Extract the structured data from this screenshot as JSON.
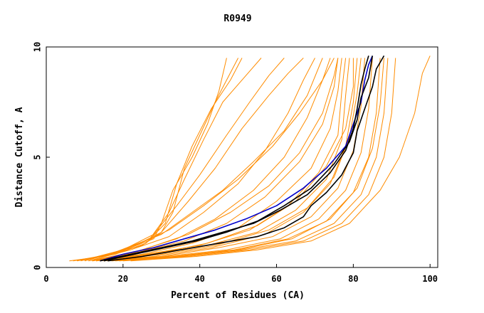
{
  "chart_data": {
    "type": "line",
    "title": "R0949",
    "xlabel": "Percent of Residues (CA)",
    "ylabel": "Distance Cutoff, A",
    "xlim": [
      0,
      102
    ],
    "ylim": [
      0,
      10
    ],
    "x_ticks": [
      0,
      20,
      40,
      60,
      80,
      100
    ],
    "y_ticks": [
      0,
      5,
      10
    ],
    "grid": false,
    "colors": {
      "orange": "#ff8c00",
      "blue": "#0000cc",
      "black": "#000000"
    },
    "series": [
      {
        "color": "#ff8c00",
        "points": [
          [
            6,
            0.3
          ],
          [
            15,
            0.5
          ],
          [
            22,
            0.9
          ],
          [
            28,
            1.3
          ],
          [
            30,
            2.0
          ],
          [
            33,
            3.5
          ],
          [
            38,
            5.0
          ],
          [
            42,
            6.5
          ],
          [
            45,
            8.0
          ],
          [
            47,
            9.5
          ]
        ]
      },
      {
        "color": "#ff8c00",
        "points": [
          [
            7,
            0.3
          ],
          [
            17,
            0.6
          ],
          [
            25,
            1.0
          ],
          [
            30,
            1.6
          ],
          [
            33,
            2.5
          ],
          [
            36,
            4.5
          ],
          [
            40,
            6.0
          ],
          [
            44,
            7.5
          ],
          [
            47,
            8.5
          ],
          [
            50,
            9.5
          ]
        ]
      },
      {
        "color": "#ff8c00",
        "points": [
          [
            8,
            0.3
          ],
          [
            18,
            0.6
          ],
          [
            26,
            1.1
          ],
          [
            31,
            2.0
          ],
          [
            34,
            3.8
          ],
          [
            38,
            5.5
          ],
          [
            43,
            7.2
          ],
          [
            48,
            8.5
          ],
          [
            51,
            9.5
          ]
        ]
      },
      {
        "color": "#ff8c00",
        "points": [
          [
            9,
            0.3
          ],
          [
            18,
            0.7
          ],
          [
            27,
            1.3
          ],
          [
            32,
            2.5
          ],
          [
            36,
            4.0
          ],
          [
            41,
            5.8
          ],
          [
            46,
            7.5
          ],
          [
            52,
            8.7
          ],
          [
            56,
            9.5
          ]
        ]
      },
      {
        "color": "#ff8c00",
        "points": [
          [
            10,
            0.3
          ],
          [
            20,
            0.8
          ],
          [
            28,
            1.5
          ],
          [
            34,
            2.8
          ],
          [
            40,
            4.2
          ],
          [
            47,
            6.0
          ],
          [
            53,
            7.5
          ],
          [
            58,
            8.7
          ],
          [
            62,
            9.5
          ]
        ]
      },
      {
        "color": "#ff8c00",
        "points": [
          [
            10,
            0.3
          ],
          [
            21,
            0.8
          ],
          [
            30,
            1.6
          ],
          [
            37,
            3.0
          ],
          [
            44,
            4.5
          ],
          [
            51,
            6.3
          ],
          [
            58,
            7.8
          ],
          [
            63,
            8.8
          ],
          [
            67,
            9.5
          ]
        ]
      },
      {
        "color": "#ff8c00",
        "points": [
          [
            11,
            0.3
          ],
          [
            22,
            0.8
          ],
          [
            32,
            1.4
          ],
          [
            41,
            2.5
          ],
          [
            50,
            3.8
          ],
          [
            57,
            5.3
          ],
          [
            63,
            7.0
          ],
          [
            67,
            8.5
          ],
          [
            70,
            9.5
          ]
        ]
      },
      {
        "color": "#ff8c00",
        "points": [
          [
            11,
            0.3
          ],
          [
            23,
            0.7
          ],
          [
            34,
            1.3
          ],
          [
            44,
            2.2
          ],
          [
            54,
            3.5
          ],
          [
            62,
            5.0
          ],
          [
            68,
            6.8
          ],
          [
            72,
            8.5
          ],
          [
            75,
            9.5
          ]
        ]
      },
      {
        "color": "#ff8c00",
        "points": [
          [
            12,
            0.3
          ],
          [
            24,
            0.7
          ],
          [
            36,
            1.2
          ],
          [
            47,
            2.0
          ],
          [
            57,
            3.2
          ],
          [
            66,
            4.8
          ],
          [
            72,
            6.5
          ],
          [
            75,
            8.2
          ],
          [
            76,
            9.5
          ]
        ]
      },
      {
        "color": "#ff8c00",
        "points": [
          [
            12,
            0.3
          ],
          [
            25,
            0.6
          ],
          [
            38,
            1.1
          ],
          [
            50,
            1.8
          ],
          [
            60,
            3.0
          ],
          [
            69,
            4.5
          ],
          [
            74,
            6.3
          ],
          [
            76,
            8.0
          ],
          [
            77,
            9.5
          ]
        ]
      },
      {
        "color": "#ff8c00",
        "points": [
          [
            13,
            0.3
          ],
          [
            26,
            0.6
          ],
          [
            40,
            1.0
          ],
          [
            53,
            1.7
          ],
          [
            63,
            2.8
          ],
          [
            71,
            4.3
          ],
          [
            76,
            6.0
          ],
          [
            77,
            8.0
          ],
          [
            78,
            9.5
          ]
        ]
      },
      {
        "color": "#ff8c00",
        "points": [
          [
            13,
            0.3
          ],
          [
            27,
            0.6
          ],
          [
            42,
            1.0
          ],
          [
            55,
            1.6
          ],
          [
            65,
            2.6
          ],
          [
            73,
            4.0
          ],
          [
            77,
            5.8
          ],
          [
            78,
            7.8
          ],
          [
            79,
            9.5
          ]
        ]
      },
      {
        "color": "#ff8c00",
        "points": [
          [
            14,
            0.3
          ],
          [
            28,
            0.5
          ],
          [
            43,
            0.9
          ],
          [
            57,
            1.5
          ],
          [
            67,
            2.5
          ],
          [
            74,
            3.8
          ],
          [
            78,
            5.5
          ],
          [
            80,
            7.5
          ],
          [
            81,
            9.5
          ]
        ]
      },
      {
        "color": "#ff8c00",
        "points": [
          [
            15,
            0.3
          ],
          [
            30,
            0.5
          ],
          [
            45,
            0.9
          ],
          [
            59,
            1.4
          ],
          [
            69,
            2.3
          ],
          [
            76,
            3.6
          ],
          [
            80,
            5.3
          ],
          [
            82,
            7.3
          ],
          [
            83,
            9.5
          ]
        ]
      },
      {
        "color": "#ff8c00",
        "points": [
          [
            16,
            0.3
          ],
          [
            31,
            0.5
          ],
          [
            47,
            0.8
          ],
          [
            61,
            1.3
          ],
          [
            71,
            2.2
          ],
          [
            78,
            3.5
          ],
          [
            82,
            5.2
          ],
          [
            84,
            7.2
          ],
          [
            85,
            9.5
          ]
        ]
      },
      {
        "color": "#ff8c00",
        "points": [
          [
            17,
            0.3
          ],
          [
            33,
            0.5
          ],
          [
            49,
            0.8
          ],
          [
            63,
            1.3
          ],
          [
            73,
            2.1
          ],
          [
            80,
            3.4
          ],
          [
            84,
            5.0
          ],
          [
            86,
            7.0
          ],
          [
            87,
            9.5
          ]
        ]
      },
      {
        "color": "#ff8c00",
        "points": [
          [
            18,
            0.3
          ],
          [
            35,
            0.5
          ],
          [
            51,
            0.8
          ],
          [
            65,
            1.2
          ],
          [
            75,
            2.0
          ],
          [
            82,
            3.3
          ],
          [
            86,
            5.0
          ],
          [
            88,
            7.0
          ],
          [
            89,
            9.5
          ]
        ]
      },
      {
        "color": "#ff8c00",
        "points": [
          [
            20,
            0.3
          ],
          [
            37,
            0.5
          ],
          [
            53,
            0.8
          ],
          [
            67,
            1.2
          ],
          [
            77,
            2.0
          ],
          [
            84,
            3.3
          ],
          [
            88,
            5.0
          ],
          [
            90,
            7.0
          ],
          [
            91,
            9.5
          ]
        ]
      },
      {
        "color": "#ff8c00",
        "points": [
          [
            22,
            0.3
          ],
          [
            39,
            0.5
          ],
          [
            55,
            0.8
          ],
          [
            69,
            1.2
          ],
          [
            79,
            2.0
          ],
          [
            87,
            3.5
          ],
          [
            92,
            5.0
          ],
          [
            96,
            7.0
          ],
          [
            98,
            8.8
          ],
          [
            100,
            9.6
          ]
        ]
      },
      {
        "color": "#ff8c00",
        "points": [
          [
            9,
            0.3
          ],
          [
            20,
            0.8
          ],
          [
            30,
            1.5
          ],
          [
            38,
            2.5
          ],
          [
            46,
            3.5
          ],
          [
            54,
            4.8
          ],
          [
            62,
            6.2
          ],
          [
            68,
            7.8
          ],
          [
            72,
            9.5
          ]
        ]
      },
      {
        "color": "#ff8c00",
        "points": [
          [
            10,
            0.3
          ],
          [
            22,
            0.9
          ],
          [
            32,
            1.7
          ],
          [
            41,
            2.8
          ],
          [
            50,
            4.0
          ],
          [
            59,
            5.5
          ],
          [
            66,
            7.0
          ],
          [
            72,
            8.5
          ],
          [
            74,
            9.5
          ]
        ]
      },
      {
        "color": "#ff8c00",
        "points": [
          [
            12,
            0.3
          ],
          [
            25,
            0.8
          ],
          [
            37,
            1.5
          ],
          [
            48,
            2.5
          ],
          [
            58,
            3.7
          ],
          [
            66,
            5.2
          ],
          [
            72,
            7.0
          ],
          [
            75,
            8.7
          ],
          [
            76,
            9.5
          ]
        ]
      },
      {
        "color": "#ff8c00",
        "points": [
          [
            14,
            0.3
          ],
          [
            28,
            0.6
          ],
          [
            42,
            1.1
          ],
          [
            55,
            1.9
          ],
          [
            65,
            3.0
          ],
          [
            73,
            4.6
          ],
          [
            78,
            6.3
          ],
          [
            80,
            8.2
          ],
          [
            80,
            9.5
          ]
        ]
      },
      {
        "color": "#ff8c00",
        "points": [
          [
            15,
            0.3
          ],
          [
            30,
            0.6
          ],
          [
            44,
            1.0
          ],
          [
            58,
            1.7
          ],
          [
            68,
            2.7
          ],
          [
            75,
            4.1
          ],
          [
            79,
            5.9
          ],
          [
            81,
            7.9
          ],
          [
            82,
            9.5
          ]
        ]
      },
      {
        "color": "#ff8c00",
        "points": [
          [
            19,
            0.3
          ],
          [
            34,
            0.5
          ],
          [
            50,
            0.8
          ],
          [
            64,
            1.3
          ],
          [
            74,
            2.2
          ],
          [
            81,
            3.6
          ],
          [
            85,
            5.4
          ],
          [
            87,
            7.4
          ],
          [
            88,
            9.5
          ]
        ]
      },
      {
        "color": "#0000cc",
        "points": [
          [
            14,
            0.3
          ],
          [
            20,
            0.6
          ],
          [
            28,
            0.9
          ],
          [
            36,
            1.3
          ],
          [
            44,
            1.7
          ],
          [
            52,
            2.2
          ],
          [
            60,
            2.8
          ],
          [
            67,
            3.6
          ],
          [
            73,
            4.5
          ],
          [
            78,
            5.5
          ],
          [
            80,
            6.5
          ],
          [
            82,
            7.5
          ],
          [
            83,
            8.5
          ],
          [
            84,
            9.2
          ],
          [
            85,
            9.6
          ]
        ]
      },
      {
        "color": "#000000",
        "points": [
          [
            14,
            0.3
          ],
          [
            22,
            0.6
          ],
          [
            30,
            0.9
          ],
          [
            38,
            1.2
          ],
          [
            46,
            1.6
          ],
          [
            54,
            2.0
          ],
          [
            61,
            2.6
          ],
          [
            68,
            3.3
          ],
          [
            74,
            4.3
          ],
          [
            78,
            5.3
          ],
          [
            80,
            6.3
          ],
          [
            81,
            7.2
          ],
          [
            82,
            8.3
          ],
          [
            83,
            9.0
          ],
          [
            84,
            9.6
          ]
        ]
      },
      {
        "color": "#000000",
        "points": [
          [
            15,
            0.3
          ],
          [
            23,
            0.6
          ],
          [
            31,
            0.9
          ],
          [
            39,
            1.2
          ],
          [
            47,
            1.6
          ],
          [
            55,
            2.1
          ],
          [
            62,
            2.8
          ],
          [
            69,
            3.6
          ],
          [
            75,
            4.7
          ],
          [
            79,
            5.7
          ],
          [
            81,
            6.7
          ],
          [
            82,
            7.7
          ],
          [
            84,
            8.6
          ],
          [
            85,
            9.6
          ]
        ]
      },
      {
        "color": "#000000",
        "points": [
          [
            16,
            0.3
          ],
          [
            25,
            0.5
          ],
          [
            35,
            0.8
          ],
          [
            45,
            1.1
          ],
          [
            55,
            1.4
          ],
          [
            62,
            1.8
          ],
          [
            67,
            2.3
          ],
          [
            69,
            2.8
          ],
          [
            73,
            3.4
          ],
          [
            77,
            4.2
          ],
          [
            80,
            5.2
          ],
          [
            81,
            6.2
          ],
          [
            83,
            7.2
          ],
          [
            85,
            8.2
          ],
          [
            86,
            9.0
          ],
          [
            88,
            9.6
          ]
        ]
      }
    ]
  }
}
